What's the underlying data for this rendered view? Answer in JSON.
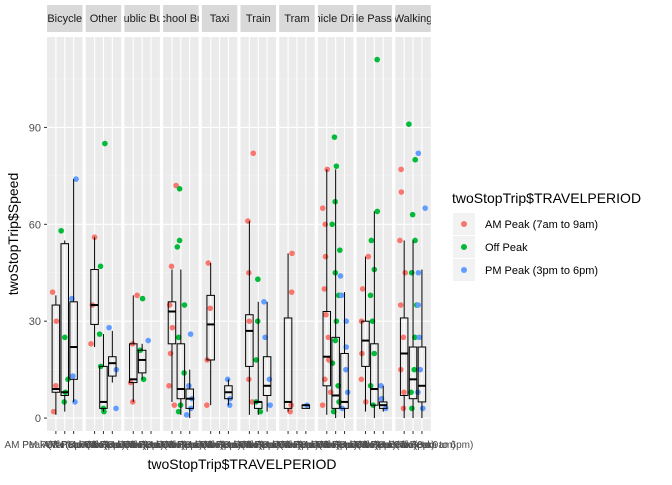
{
  "chart_data": {
    "type": "box-jitter",
    "facet_layout": "facet_wrap by mode (1 row)",
    "xlabel": "twoStopTrip$TRAVELPERIOD",
    "ylabel": "twoStopTrip$Speed",
    "ylim": [
      -4,
      118
    ],
    "yticks": [
      0,
      30,
      60,
      90
    ],
    "grid": true,
    "legend": {
      "title": "twoStopTrip$TRAVELPERIOD",
      "placement": "right",
      "entries": [
        "AM Peak (7am to 9am)",
        "Off Peak",
        "PM Peak (3pm to 6pm)"
      ]
    },
    "x_tick_labels": [
      "AM Peak (7am to 9am)",
      "Off Peak",
      "PM Peak (3pm to 6pm)"
    ],
    "colors": {
      "AM": "#F8766D",
      "Off": "#00BA38",
      "PM": "#619CFF",
      "panel": "#EBEBEB",
      "strip": "#D9D9D9"
    },
    "facets": [
      {
        "label": "Bicycle",
        "boxes": [
          {
            "period": "AM",
            "q1": 8,
            "median": 9,
            "q3": 35,
            "min": 1,
            "max": 38
          },
          {
            "period": "Off",
            "q1": 7,
            "median": 8,
            "q3": 54,
            "min": 2,
            "max": 55
          },
          {
            "period": "PM",
            "q1": 12,
            "median": 22,
            "q3": 36,
            "min": 5,
            "max": 74
          }
        ],
        "points": {
          "AM": [
            10,
            30,
            39,
            2
          ],
          "Off": [
            5,
            25,
            58,
            12,
            8
          ],
          "PM": [
            13,
            37,
            74,
            5
          ]
        }
      },
      {
        "label": "Other",
        "boxes": [
          {
            "period": "AM",
            "q1": 29,
            "median": 35,
            "q3": 46,
            "min": 22,
            "max": 56
          },
          {
            "period": "Off",
            "q1": 3,
            "median": 5,
            "q3": 16,
            "min": 2,
            "max": 26
          },
          {
            "period": "PM",
            "q1": 13,
            "median": 17,
            "q3": 19,
            "min": 11,
            "max": 27
          }
        ],
        "points": {
          "AM": [
            23,
            56,
            35
          ],
          "Off": [
            85,
            47,
            2,
            3,
            16,
            26
          ],
          "PM": [
            3,
            15,
            28
          ]
        }
      },
      {
        "label": "Public Bus",
        "boxes": [
          {
            "period": "AM",
            "q1": 11,
            "median": 12,
            "q3": 23,
            "min": 5,
            "max": 38
          },
          {
            "period": "Off",
            "q1": 14,
            "median": 18,
            "q3": 21,
            "min": 12,
            "max": 23
          },
          {
            "period": "PM",
            "q1": null,
            "median": null,
            "q3": null,
            "min": null,
            "max": null
          }
        ],
        "points": {
          "AM": [
            5,
            38,
            11,
            23
          ],
          "Off": [
            37,
            12,
            21
          ],
          "PM": [
            24
          ]
        }
      },
      {
        "label": "School Bus",
        "boxes": [
          {
            "period": "AM",
            "q1": 23,
            "median": 33,
            "q3": 36,
            "min": 5,
            "max": 46
          },
          {
            "period": "Off",
            "q1": 6,
            "median": 9,
            "q3": 23,
            "min": 1,
            "max": 46
          },
          {
            "period": "PM",
            "q1": 3,
            "median": 6,
            "q3": 9,
            "min": 0,
            "max": 15
          }
        ],
        "points": {
          "AM": [
            72,
            47,
            35,
            28,
            20,
            10,
            4
          ],
          "Off": [
            71,
            55,
            53,
            35,
            25,
            14,
            4,
            2
          ],
          "PM": [
            26,
            10,
            6,
            3,
            1
          ]
        }
      },
      {
        "label": "Taxi",
        "boxes": [
          {
            "period": "AM",
            "q1": 18,
            "median": 29,
            "q3": 38,
            "min": 4,
            "max": 48
          },
          {
            "period": "Off",
            "q1": null,
            "median": null,
            "q3": null,
            "min": null,
            "max": null
          },
          {
            "period": "PM",
            "q1": 6,
            "median": 8,
            "q3": 10,
            "min": 4,
            "max": 12
          }
        ],
        "points": {
          "AM": [
            48,
            34,
            18,
            4
          ],
          "Off": [],
          "PM": [
            12,
            6,
            4
          ]
        }
      },
      {
        "label": "Train",
        "boxes": [
          {
            "period": "AM",
            "q1": 16,
            "median": 27,
            "q3": 32,
            "min": 1,
            "max": 61
          },
          {
            "period": "Off",
            "q1": 3,
            "median": 5,
            "q3": 5,
            "min": 1,
            "max": 36
          },
          {
            "period": "PM",
            "q1": 7,
            "median": 10,
            "q3": 19,
            "min": 2,
            "max": 36
          }
        ],
        "points": {
          "AM": [
            82,
            61,
            45,
            30,
            12,
            5
          ],
          "Off": [
            43,
            30,
            18,
            5,
            2
          ],
          "PM": [
            36,
            25,
            12,
            4
          ]
        }
      },
      {
        "label": "Tram",
        "boxes": [
          {
            "period": "AM",
            "q1": 3,
            "median": 5,
            "q3": 31,
            "min": 2,
            "max": 51
          },
          {
            "period": "Off",
            "q1": null,
            "median": null,
            "q3": null,
            "min": null,
            "max": null
          },
          {
            "period": "PM",
            "q1": 3,
            "median": 4,
            "q3": 4,
            "min": 3,
            "max": 4
          }
        ],
        "points": {
          "AM": [
            51,
            39,
            4,
            2
          ],
          "Off": [],
          "PM": [
            4
          ]
        }
      },
      {
        "label": "Vehicle Driver",
        "boxes": [
          {
            "period": "AM",
            "q1": 10,
            "median": 19,
            "q3": 33,
            "min": 1,
            "max": 77
          },
          {
            "period": "Off",
            "q1": 3,
            "median": 7,
            "q3": 25,
            "min": 0,
            "max": 77
          },
          {
            "period": "PM",
            "q1": 3,
            "median": 5,
            "q3": 20,
            "min": 0,
            "max": 39
          }
        ],
        "points": {
          "AM": [
            77,
            65,
            60,
            50,
            40,
            32,
            25,
            18,
            12,
            8,
            4
          ],
          "Off": [
            87,
            78,
            67,
            60,
            52,
            45,
            38,
            30,
            24,
            17,
            10,
            5,
            2
          ],
          "PM": [
            44,
            38,
            30,
            22,
            15,
            8,
            3
          ]
        }
      },
      {
        "label": "Vehicle Passenger",
        "boxes": [
          {
            "period": "AM",
            "q1": 16,
            "median": 24,
            "q3": 30,
            "min": 2,
            "max": 50
          },
          {
            "period": "Off",
            "q1": 4,
            "median": 9,
            "q3": 23,
            "min": 0,
            "max": 64
          },
          {
            "period": "PM",
            "q1": 3,
            "median": 4,
            "q3": 5,
            "min": 2,
            "max": 10
          }
        ],
        "points": {
          "AM": [
            50,
            40,
            30,
            20,
            12,
            5
          ],
          "Off": [
            111,
            64,
            55,
            46,
            38,
            30,
            20,
            10,
            4
          ],
          "PM": [
            10,
            6,
            3
          ]
        }
      },
      {
        "label": "Walking",
        "boxes": [
          {
            "period": "AM",
            "q1": 7,
            "median": 20,
            "q3": 31,
            "min": 0,
            "max": 55
          },
          {
            "period": "Off",
            "q1": 6,
            "median": 12,
            "q3": 22,
            "min": 0,
            "max": 55
          },
          {
            "period": "PM",
            "q1": 5,
            "median": 10,
            "q3": 22,
            "min": 0,
            "max": 46
          }
        ],
        "points": {
          "AM": [
            77,
            70,
            55,
            45,
            35,
            25,
            15,
            8,
            3
          ],
          "Off": [
            91,
            80,
            63,
            55,
            45,
            35,
            25,
            15,
            8,
            3
          ],
          "PM": [
            82,
            65,
            45,
            35,
            25,
            15,
            8,
            3
          ]
        }
      }
    ]
  }
}
